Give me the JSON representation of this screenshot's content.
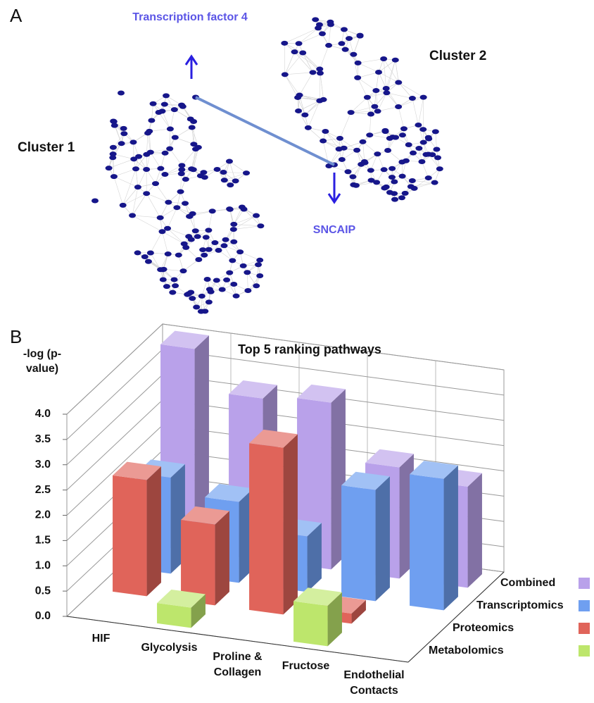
{
  "panel_a": {
    "label": "A",
    "cluster_1": "Cluster 1",
    "cluster_2": "Cluster 2",
    "gene_top": "Transcription factor 4",
    "gene_bottom": "SNCAIP"
  },
  "panel_b": {
    "label": "B"
  },
  "chart_data": {
    "type": "bar3d",
    "title": "Top 5 ranking pathways",
    "y_label": "-log (p-value)",
    "categories": [
      "HIF",
      "Glycolysis",
      "Proline & Collagen",
      "Fructose",
      "Endothelial Contacts"
    ],
    "series": [
      {
        "name": "Combined",
        "color": "#b9a1ea",
        "values": [
          4.0,
          3.2,
          3.3,
          2.2,
          2.0
        ]
      },
      {
        "name": "Transcriptomics",
        "color": "#6f9ff0",
        "values": [
          1.9,
          1.6,
          1.1,
          2.2,
          2.6
        ]
      },
      {
        "name": "Proteomics",
        "color": "#e0645a",
        "values": [
          2.3,
          1.6,
          3.3,
          0.2,
          0
        ]
      },
      {
        "name": "Metabolomics",
        "color": "#bde66c",
        "values": [
          0,
          0.4,
          0,
          0.8,
          0
        ]
      }
    ],
    "ylim": [
      0,
      4
    ],
    "yticks": [
      {
        "value": 0,
        "label": "0.0"
      },
      {
        "value": 0.5,
        "label": "0.5"
      },
      {
        "value": 1,
        "label": "1.0"
      },
      {
        "value": 1.5,
        "label": "1.5"
      },
      {
        "value": 2,
        "label": "2.0"
      },
      {
        "value": 2.5,
        "label": "2.5"
      },
      {
        "value": 3,
        "label": "3.0"
      },
      {
        "value": 3.5,
        "label": "3.5"
      },
      {
        "value": 4,
        "label": "4.0"
      }
    ],
    "grid": true
  }
}
